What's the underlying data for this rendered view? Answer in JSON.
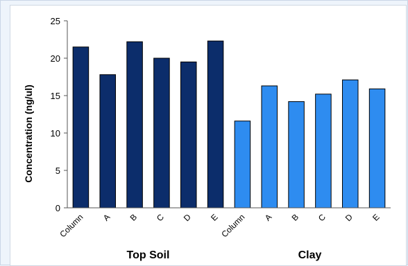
{
  "chart_data": {
    "type": "bar",
    "ylabel": "Concentration (ng/ul)",
    "ylim": [
      0,
      25
    ],
    "yticks": [
      0,
      5,
      10,
      15,
      20,
      25
    ],
    "grid": false,
    "legend": "none",
    "groups": [
      {
        "name": "Top Soil",
        "color": "#0c2d6b",
        "categories": [
          "Column",
          "A",
          "B",
          "C",
          "D",
          "E"
        ],
        "values": [
          21.5,
          17.8,
          22.2,
          20.0,
          19.5,
          22.3
        ]
      },
      {
        "name": "Clay",
        "color": "#2e8cf0",
        "categories": [
          "Column",
          "A",
          "B",
          "C",
          "D",
          "E"
        ],
        "values": [
          11.6,
          16.3,
          14.2,
          15.2,
          17.1,
          15.9
        ]
      }
    ]
  }
}
